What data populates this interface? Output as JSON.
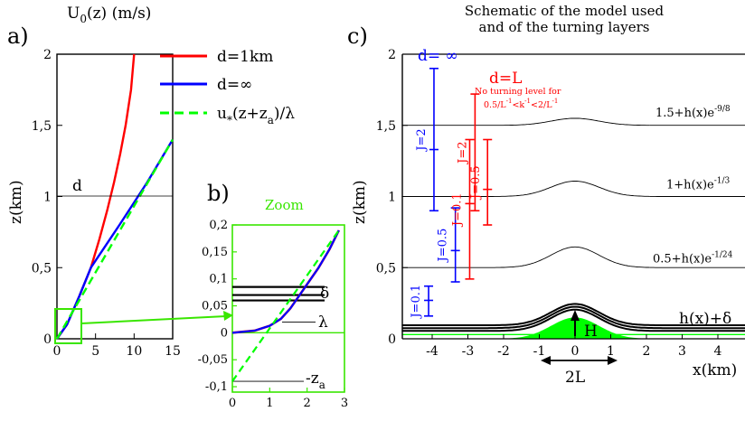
{
  "chart_data": [
    {
      "panel": "a)",
      "type": "line",
      "ylabel": "z(km)",
      "title": "U0(z) (m/s)",
      "title_main": "U",
      "title_sub": "0",
      "title_rest": "(z) (m/s)",
      "xlim": [
        0,
        15
      ],
      "ylim": [
        0,
        2
      ],
      "xticks": [
        "0",
        "5",
        "10",
        "15"
      ],
      "yticks": [
        "0",
        "0,5",
        "1",
        "1,5",
        "2"
      ],
      "annotations": [
        {
          "text": "d",
          "y": 1
        }
      ],
      "colors": {
        "red": "#ff0000",
        "blue": "#0000ff",
        "green": "#00ff00"
      },
      "series": [
        {
          "name": "d=1km",
          "color": "#ff0000",
          "x": [
            0,
            1.3,
            2.9,
            4.4,
            5.5,
            6.5,
            7.4,
            8.2,
            8.9,
            9.6,
            10.0
          ],
          "y": [
            0,
            0.1,
            0.3,
            0.5,
            0.7,
            0.9,
            1.1,
            1.3,
            1.5,
            1.75,
            2.0
          ]
        },
        {
          "name": "d=∞",
          "color": "#0000ff",
          "x": [
            0,
            1.3,
            2.9,
            4.4,
            8.1,
            11.7,
            15.0
          ],
          "y": [
            0,
            0.1,
            0.3,
            0.5,
            0.8,
            1.1,
            1.4
          ]
        },
        {
          "name": "u*(z+za)/λ",
          "name_main": "u",
          "name_sub1": "*",
          "name_mid": "(z+z",
          "name_sub2": "a",
          "name_end": ")/λ",
          "color": "#00ff00",
          "x": [
            0,
            15.0
          ],
          "y": [
            0,
            1.4
          ]
        }
      ]
    },
    {
      "panel": "b)",
      "type": "line",
      "title": "Zoom",
      "xlim": [
        0,
        3
      ],
      "ylim": [
        -0.11,
        0.2
      ],
      "xticks": [
        "0",
        "1",
        "2",
        "3"
      ],
      "yticks": [
        "-0,1",
        "-0,05",
        "0",
        "0,05",
        "0,1",
        "0,15",
        "0,2"
      ],
      "annotations": [
        {
          "text": "δ",
          "y": 0.055
        },
        {
          "text": "λ",
          "y": 0.02
        },
        {
          "text": "-z",
          "sub": "a",
          "y": -0.09
        }
      ],
      "levels": [
        0.06,
        0.07,
        0.085
      ],
      "series": [
        {
          "name": "d=1km",
          "color": "#ff0000",
          "x": [
            0.0,
            0.6,
            1.0,
            1.3,
            1.55,
            1.75,
            2.0,
            2.3,
            2.6,
            2.85
          ],
          "y": [
            0.0,
            0.004,
            0.013,
            0.026,
            0.045,
            0.065,
            0.09,
            0.12,
            0.155,
            0.19
          ]
        },
        {
          "name": "d=∞",
          "color": "#0000ff",
          "x": [
            0.0,
            0.6,
            1.0,
            1.3,
            1.55,
            1.75,
            2.0,
            2.3,
            2.6,
            2.85
          ],
          "y": [
            0.0,
            0.004,
            0.013,
            0.026,
            0.045,
            0.065,
            0.09,
            0.12,
            0.155,
            0.19
          ]
        },
        {
          "name": "u*(z+za)/λ",
          "color": "#00ff00",
          "x": [
            0.0,
            2.85
          ],
          "y": [
            -0.09,
            0.19
          ]
        }
      ]
    },
    {
      "panel": "c)",
      "type": "line",
      "title": "Schematic of the  model used",
      "title2": "and of the turning layers",
      "xlabel": "x(km)",
      "ylabel": "z(km)",
      "xlim": [
        -5,
        5
      ],
      "ylim": [
        0,
        2
      ],
      "xticks": [
        "-4",
        "-3",
        "-2",
        "-1",
        "0",
        "1",
        "2",
        "3",
        "4"
      ],
      "yticks": [
        "0",
        "0,5",
        "1",
        "1,5",
        "2"
      ],
      "hill": {
        "H_km": 0.15,
        "L_km": 1.0
      },
      "layers": [
        {
          "base": 0.5,
          "label": "0.5+h(x)e",
          "exp": "-1/24"
        },
        {
          "base": 1.0,
          "label": "1+h(x)e",
          "exp": "-1/3"
        },
        {
          "base": 1.5,
          "label": "1.5+h(x)e",
          "exp": "-9/8"
        }
      ],
      "boundary_label": "h(x)+δ",
      "H_label": "H",
      "L_label": "2L",
      "legend_blue": "d= ∞",
      "legend_red": "d=L",
      "note_red_l1": "No turning level for",
      "note_red_l2": "0.5/L",
      "note_red_l3": "<k",
      "note_red_l4": "<2/L",
      "note_sup_left": "-1",
      "note_sup_mid": "-1",
      "note_sup_right": "-1",
      "bars_blue": [
        {
          "label": "J=2",
          "x": -3.95,
          "y0": 0.9,
          "y1": 1.9,
          "ticks": [
            1.33
          ]
        },
        {
          "label": "J=0.5",
          "x": -3.35,
          "y0": 0.4,
          "y1": 0.92,
          "ticks": [
            0.62
          ]
        },
        {
          "label": "J=0.1",
          "x": -4.1,
          "y0": 0.16,
          "y1": 0.37,
          "ticks": [
            0.27
          ]
        }
      ],
      "bars_red": [
        {
          "label": "J=2",
          "x": -2.8,
          "y0": 0.9,
          "y1": 1.72,
          "ticks": []
        },
        {
          "label": "J=0.1",
          "x": -2.95,
          "y0": 0.42,
          "y1": 1.4,
          "ticks": [
            0.95
          ]
        },
        {
          "label": "J=0.5",
          "x": -2.45,
          "y0": 0.8,
          "y1": 1.4,
          "ticks": [
            1.05
          ]
        }
      ]
    }
  ]
}
